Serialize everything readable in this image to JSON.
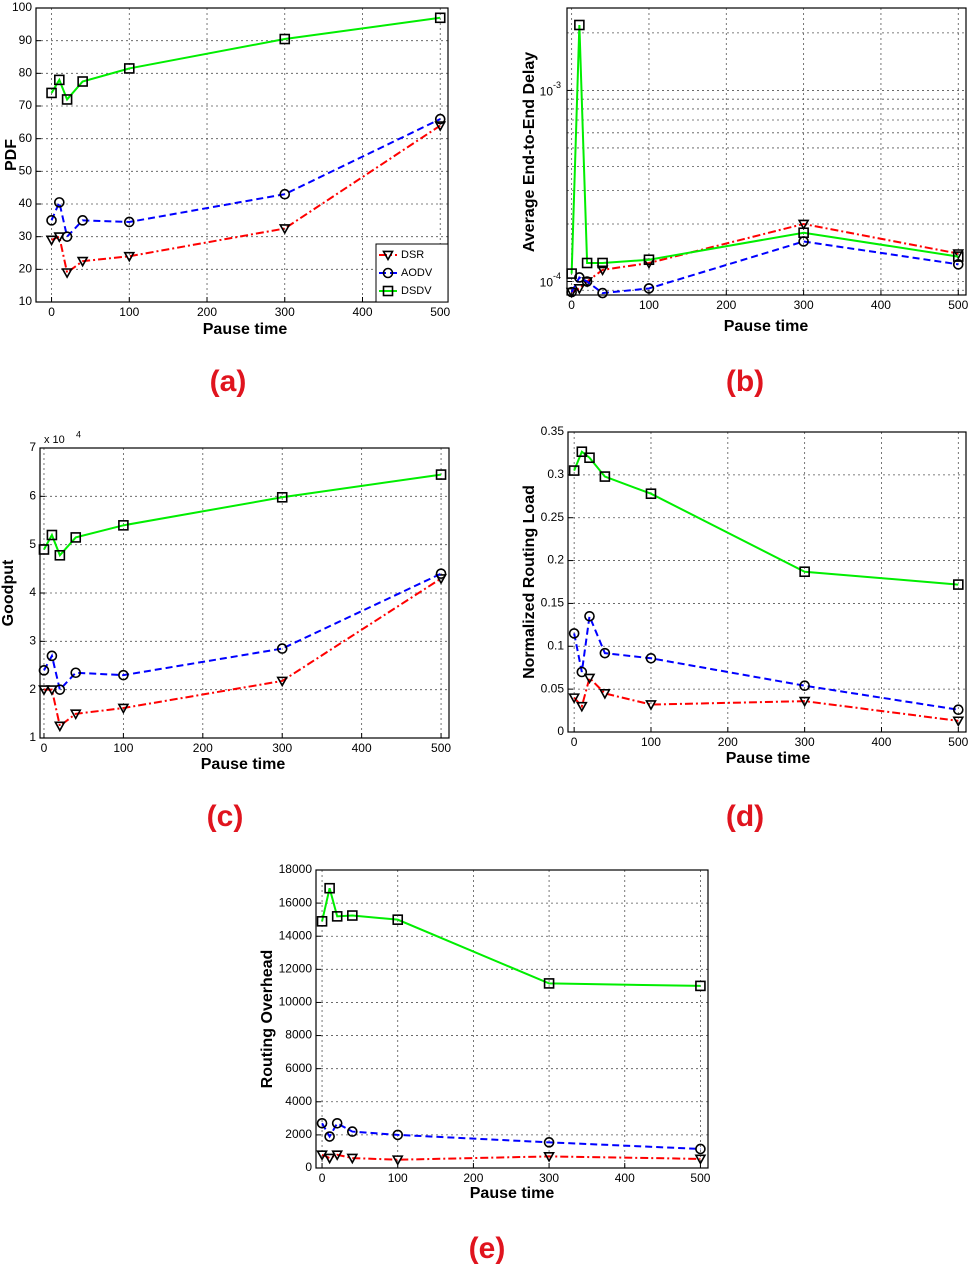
{
  "chart_data": [
    {
      "type": "line",
      "caption": "(a)",
      "xlabel": "Pause time",
      "ylabel": "PDF",
      "x": [
        0,
        10,
        20,
        40,
        100,
        300,
        500
      ],
      "xlim": [
        -20,
        510
      ],
      "xticks": [
        0,
        100,
        200,
        300,
        400,
        500
      ],
      "ylim": [
        10,
        100
      ],
      "yticks": [
        10,
        20,
        30,
        40,
        50,
        60,
        70,
        80,
        90,
        100
      ],
      "grid": true,
      "legend": "lower right",
      "series": [
        {
          "name": "DSR",
          "color": "#ff0000",
          "dash": "dashdot",
          "marker": "triangle-down",
          "values": [
            29,
            30,
            19,
            22.5,
            24,
            32.5,
            64
          ]
        },
        {
          "name": "AODV",
          "color": "#0000ff",
          "dash": "dashed",
          "marker": "circle",
          "values": [
            35,
            40.5,
            30,
            35,
            34.5,
            43,
            66
          ]
        },
        {
          "name": "DSDV",
          "color": "#00ee00",
          "dash": "solid",
          "marker": "square",
          "values": [
            74,
            78,
            72,
            77.5,
            81.5,
            90.5,
            97
          ]
        }
      ]
    },
    {
      "type": "line",
      "caption": "(b)",
      "xlabel": "Pause time",
      "ylabel": "Average End-to-End Delay",
      "x": [
        0,
        10,
        20,
        40,
        100,
        300,
        500
      ],
      "xlim": [
        -6,
        510
      ],
      "xticks": [
        0,
        100,
        200,
        300,
        400,
        500
      ],
      "ylim": [
        8.5e-05,
        0.0027
      ],
      "log_y": true,
      "yticks": [
        {
          "value": 0.0001,
          "label": "10",
          "exponent": "-4"
        },
        {
          "value": 0.001,
          "label": "10",
          "exponent": "-3"
        }
      ],
      "grid": true,
      "series": [
        {
          "name": "DSR",
          "color": "#ff0000",
          "dash": "dashdot",
          "marker": "triangle-down",
          "values": [
            8.8e-05,
            9.2e-05,
            0.0001,
            0.000115,
            0.000125,
            0.0002,
            0.00014
          ]
        },
        {
          "name": "AODV",
          "color": "#0000ff",
          "dash": "dashed",
          "marker": "circle",
          "values": [
            8.8e-05,
            0.000105,
            0.0001,
            8.7e-05,
            9.2e-05,
            0.000162,
            0.000123
          ]
        },
        {
          "name": "DSDV",
          "color": "#00ee00",
          "dash": "solid",
          "marker": "square",
          "values": [
            0.00011,
            0.0022,
            0.000125,
            0.000125,
            0.00013,
            0.00018,
            0.000135
          ]
        }
      ]
    },
    {
      "type": "line",
      "caption": "(c)",
      "xlabel": "Pause time",
      "ylabel": "Goodput",
      "y_multiplier": {
        "label": "x 10",
        "exponent": "4"
      },
      "x": [
        0,
        10,
        20,
        40,
        100,
        300,
        500
      ],
      "xlim": [
        -5,
        510
      ],
      "xticks": [
        0,
        100,
        200,
        300,
        400,
        500
      ],
      "ylim": [
        1,
        7
      ],
      "yticks": [
        1,
        2,
        3,
        4,
        5,
        6,
        7
      ],
      "grid": true,
      "series": [
        {
          "name": "DSR",
          "color": "#ff0000",
          "dash": "dashdot",
          "marker": "triangle-down",
          "values": [
            2.0,
            2.0,
            1.25,
            1.5,
            1.62,
            2.18,
            4.3
          ]
        },
        {
          "name": "AODV",
          "color": "#0000ff",
          "dash": "dashed",
          "marker": "circle",
          "values": [
            2.4,
            2.7,
            2.0,
            2.35,
            2.3,
            2.85,
            4.4
          ]
        },
        {
          "name": "DSDV",
          "color": "#00ee00",
          "dash": "solid",
          "marker": "square",
          "values": [
            4.9,
            5.2,
            4.78,
            5.15,
            5.4,
            5.98,
            6.45
          ]
        }
      ]
    },
    {
      "type": "line",
      "caption": "(d)",
      "xlabel": "Pause time",
      "ylabel": "Normalized Routing Load",
      "x": [
        0,
        10,
        20,
        40,
        100,
        300,
        500
      ],
      "xlim": [
        -8,
        510
      ],
      "xticks": [
        0,
        100,
        200,
        300,
        400,
        500
      ],
      "ylim": [
        0,
        0.35
      ],
      "yticks": [
        0,
        0.05,
        0.1,
        0.15,
        0.2,
        0.25,
        0.3,
        0.35
      ],
      "grid": true,
      "series": [
        {
          "name": "DSR",
          "color": "#ff0000",
          "dash": "dashdot",
          "marker": "triangle-down",
          "values": [
            0.04,
            0.03,
            0.063,
            0.045,
            0.032,
            0.036,
            0.013
          ]
        },
        {
          "name": "AODV",
          "color": "#0000ff",
          "dash": "dashed",
          "marker": "circle",
          "values": [
            0.115,
            0.07,
            0.135,
            0.092,
            0.086,
            0.054,
            0.026
          ]
        },
        {
          "name": "DSDV",
          "color": "#00ee00",
          "dash": "solid",
          "marker": "square",
          "values": [
            0.305,
            0.327,
            0.32,
            0.298,
            0.278,
            0.187,
            0.172
          ]
        }
      ]
    },
    {
      "type": "line",
      "caption": "(e)",
      "xlabel": "Pause time",
      "ylabel": "Routing Overhead",
      "x": [
        0,
        10,
        20,
        40,
        100,
        300,
        500
      ],
      "xlim": [
        -8,
        510
      ],
      "xticks": [
        0,
        100,
        200,
        300,
        400,
        500
      ],
      "ylim": [
        0,
        18000
      ],
      "yticks": [
        0,
        2000,
        4000,
        6000,
        8000,
        10000,
        12000,
        14000,
        16000,
        18000
      ],
      "grid": true,
      "series": [
        {
          "name": "DSR",
          "color": "#ff0000",
          "dash": "dashdot",
          "marker": "triangle-down",
          "values": [
            800,
            600,
            800,
            600,
            500,
            700,
            550
          ]
        },
        {
          "name": "AODV",
          "color": "#0000ff",
          "dash": "dashed",
          "marker": "circle",
          "values": [
            2700,
            1900,
            2700,
            2200,
            2000,
            1550,
            1150
          ]
        },
        {
          "name": "DSDV",
          "color": "#00ee00",
          "dash": "solid",
          "marker": "square",
          "values": [
            14900,
            16900,
            15200,
            15250,
            15000,
            11150,
            11000
          ]
        }
      ]
    }
  ]
}
